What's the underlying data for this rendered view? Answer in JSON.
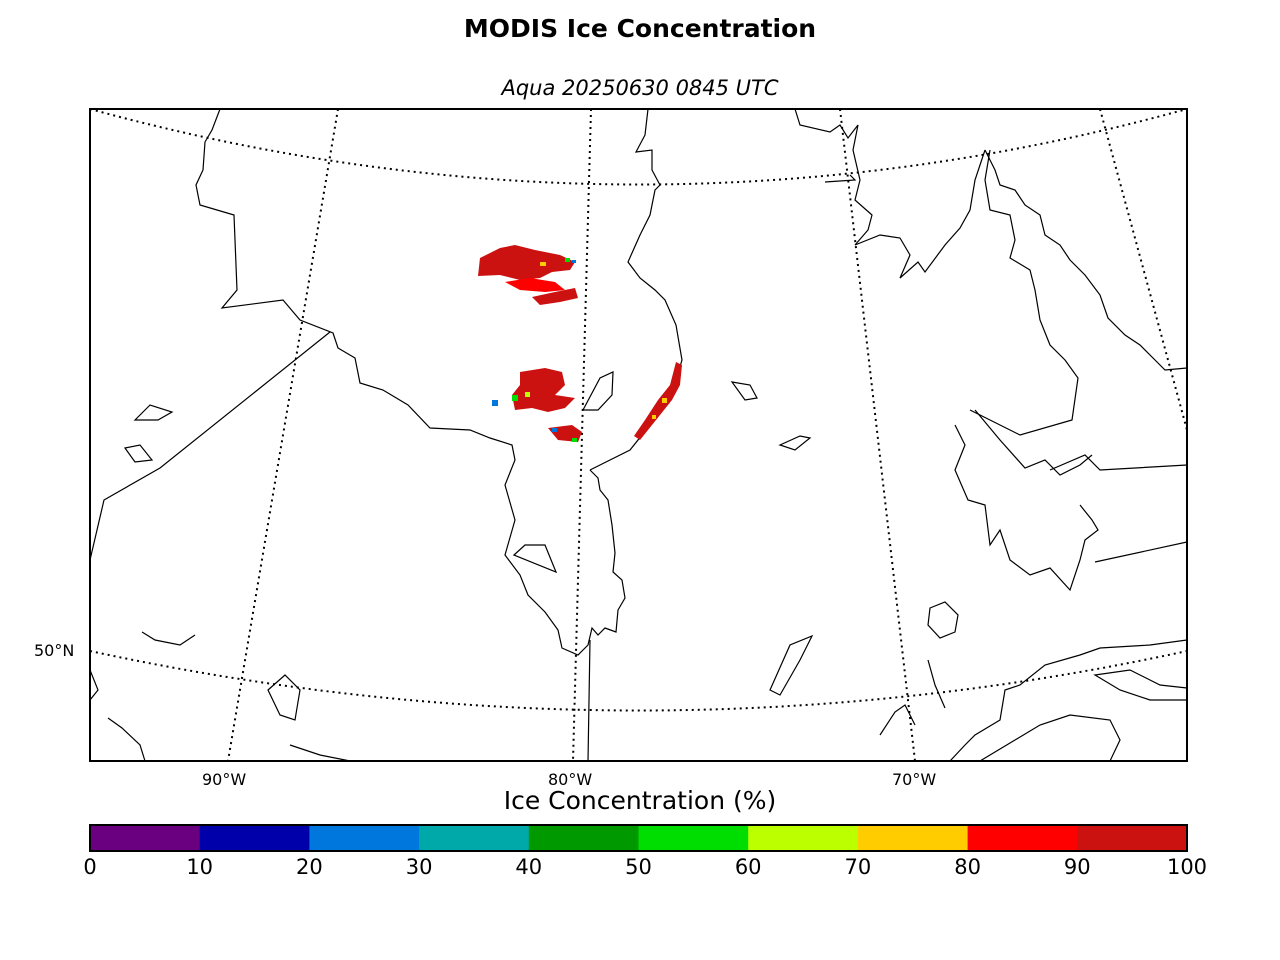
{
  "title": "MODIS Ice Concentration",
  "subtitle": "Aqua 20250630 0845 UTC",
  "lat_labels": [
    "50°N"
  ],
  "lon_labels": [
    "90°W",
    "80°W",
    "70°W"
  ],
  "colorbar": {
    "label": "Ice Concentration (%)",
    "ticks": [
      "0",
      "10",
      "20",
      "30",
      "40",
      "50",
      "60",
      "70",
      "80",
      "90",
      "100"
    ],
    "colors": [
      "#6a0080",
      "#0000aa",
      "#0077dd",
      "#00a9a9",
      "#009900",
      "#00dd00",
      "#bbff00",
      "#ffcc00",
      "#ff0000",
      "#cc1111"
    ]
  },
  "ice_colors": {
    "dominant": "#cc1111",
    "secondary": "#ff0000",
    "minor": [
      "#ffcc00",
      "#00dd00",
      "#0077dd"
    ]
  }
}
